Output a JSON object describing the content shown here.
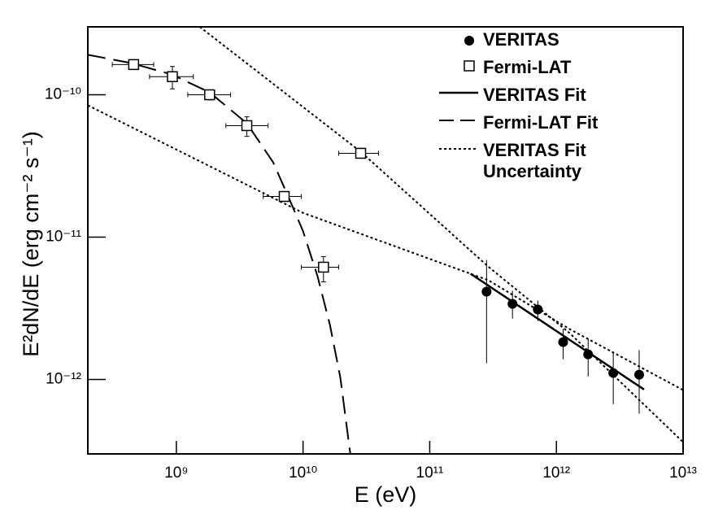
{
  "chart_data": {
    "type": "scatter",
    "xscale": "log",
    "yscale": "log",
    "xlabel": "E (eV)",
    "ylabel": "E²dN/dE (erg cm⁻² s⁻¹)",
    "xlim": [
      200000000.0,
      10000000000000.0
    ],
    "ylim": [
      3e-13,
      3e-10
    ],
    "xticks": [
      {
        "value": 1000000000.0,
        "label": "10⁹"
      },
      {
        "value": 10000000000.0,
        "label": "10¹⁰"
      },
      {
        "value": 100000000000.0,
        "label": "10¹¹"
      },
      {
        "value": 1000000000000.0,
        "label": "10¹²"
      },
      {
        "value": 10000000000000.0,
        "label": "10¹³"
      }
    ],
    "yticks": [
      {
        "value": 1e-12,
        "label": "10⁻¹²"
      },
      {
        "value": 1e-11,
        "label": "10⁻¹¹"
      },
      {
        "value": 1e-10,
        "label": "10⁻¹⁰"
      }
    ],
    "grid": false,
    "legend": "upper right",
    "series": [
      {
        "name": "VERITAS",
        "marker": "circle",
        "color": "#000000",
        "x": [
          281000000000.0,
          450000000000.0,
          713000000000.0,
          1130000000000.0,
          1780000000000.0,
          2810000000000.0,
          4500000000000.0
        ],
        "values": [
          4.14e-12,
          3.4e-12,
          3.1e-12,
          1.83e-12,
          1.5e-12,
          1.11e-12,
          1.08e-12
        ],
        "y_low": [
          1.3e-12,
          2.68e-12,
          2.58e-12,
          1.39e-12,
          1.05e-12,
          6.7e-13,
          5.75e-13
        ],
        "y_high": [
          6.9e-12,
          4.2e-12,
          3.58e-12,
          2.26e-12,
          1.95e-12,
          1.56e-12,
          1.61e-12
        ]
      },
      {
        "name": "Fermi-LAT",
        "marker": "square",
        "color": "#000000",
        "x": [
          460000000.0,
          930000000.0,
          1830000000.0,
          3600000000.0,
          7100000000.0,
          14500000000.0,
          28500000000.0
        ],
        "values": [
          1.63e-10,
          1.34e-10,
          1e-10,
          6.07e-11,
          1.93e-11,
          6.15e-12,
          3.88e-11
        ],
        "x_low": [
          312000000.0,
          614000000.0,
          1230000000.0,
          2460000000.0,
          4850000000.0,
          9700000000.0,
          19100000000.0
        ],
        "x_high": [
          662000000.0,
          1360000000.0,
          2680000000.0,
          5300000000.0,
          9700000000.0,
          19100000000.0,
          39400000000.0
        ],
        "y_low": [
          1.54e-10,
          1.1e-10,
          9.2e-11,
          5.1e-11,
          1.78e-11,
          4.85e-12,
          3.58e-11
        ],
        "y_high": [
          1.69e-10,
          1.58e-10,
          1.08e-10,
          7e-11,
          2.09e-11,
          7.3e-12,
          4.2e-11
        ]
      },
      {
        "name": "VERITAS Fit",
        "style": "solid",
        "color": "#000000",
        "x": [
          210000000000.0,
          4920000000000.0
        ],
        "values": [
          5.53e-12,
          8.5e-13
        ]
      },
      {
        "name": "Fermi-LAT Fit",
        "style": "dashed",
        "color": "#000000",
        "x": [
          200000000.0,
          438000000.0,
          916000000.0,
          1830000000.0,
          3600000000.0,
          5800000000.0,
          7780000000.0,
          10000000000.0,
          13000000000.0,
          16300000000.0,
          19700000000.0,
          23600000000.0
        ],
        "values": [
          1.91e-10,
          1.67e-10,
          1.39e-10,
          1.04e-10,
          6.3e-11,
          3.36e-11,
          1.86e-11,
          1.1e-11,
          5.32e-12,
          2.42e-12,
          1.03e-12,
          3e-13
        ]
      },
      {
        "name": "VERITAS Fit Uncertainty",
        "style": "dotted",
        "color": "#000000",
        "curves": [
          {
            "x": [
              1530000000.0,
              28500000000.0,
              290000000000.0,
              1270000000000.0,
              10000000000000.0
            ],
            "values": [
              3e-10,
              3.98e-11,
              6.2e-12,
              2.12e-12,
              3.63e-13
            ]
          },
          {
            "x": [
              200000000.0,
              10000000000.0,
              290000000000.0,
              1270000000000.0,
              10000000000000.0
            ],
            "values": [
              8.43e-11,
              1.48e-11,
              4.98e-12,
              2.26e-12,
              8.43e-13
            ]
          }
        ]
      }
    ]
  }
}
